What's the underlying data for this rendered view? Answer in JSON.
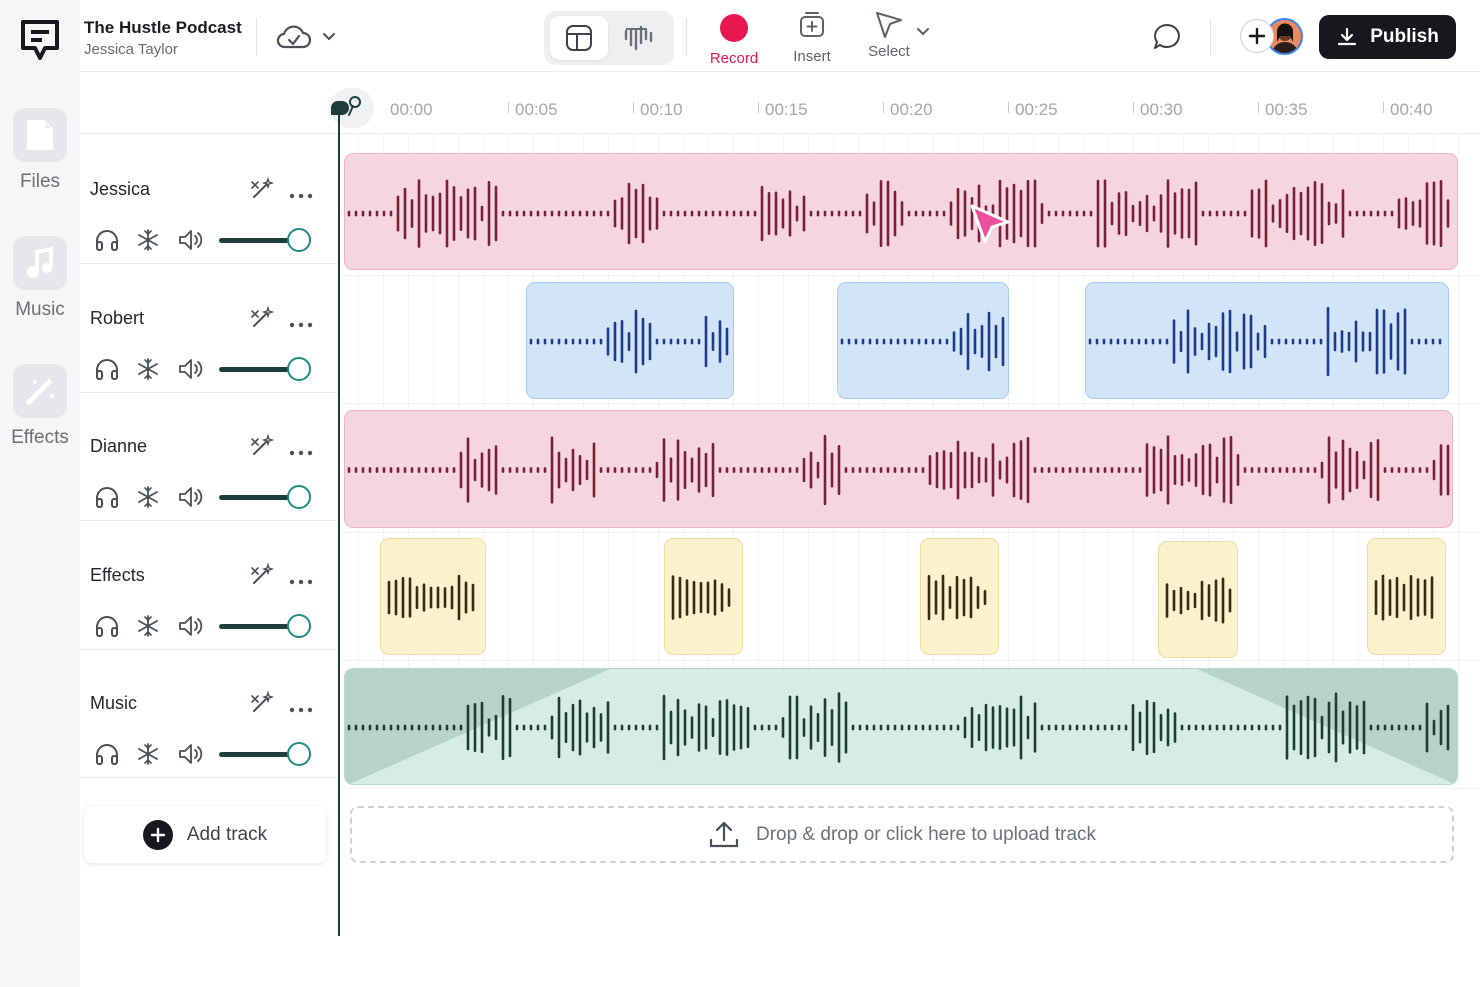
{
  "project": {
    "title": "The Hustle Podcast",
    "author": "Jessica Taylor"
  },
  "sidebar": {
    "items": [
      {
        "label": "Files",
        "icon": "file-icon"
      },
      {
        "label": "Music",
        "icon": "music-note-icon"
      },
      {
        "label": "Effects",
        "icon": "magic-wand-icon"
      }
    ]
  },
  "toolbar": {
    "record_label": "Record",
    "insert_label": "Insert",
    "select_label": "Select",
    "publish_label": "Publish"
  },
  "ruler": {
    "ticks": [
      "00:00",
      "00:05",
      "00:10",
      "00:15",
      "00:20",
      "00:25",
      "00:30",
      "00:35",
      "00:40"
    ]
  },
  "tracks": [
    {
      "name": "Jessica",
      "volume": 1.0,
      "color": "#f5d6de"
    },
    {
      "name": "Robert",
      "volume": 1.0,
      "color": "#d2e5f8"
    },
    {
      "name": "Dianne",
      "volume": 1.0,
      "color": "#f5d6de"
    },
    {
      "name": "Effects",
      "volume": 1.0,
      "color": "#fbf1cc"
    },
    {
      "name": "Music",
      "volume": 1.0,
      "color": "#d6ede6"
    }
  ],
  "footer": {
    "add_track_label": "Add track",
    "upload_label": "Drop & drop or click here to upload track"
  },
  "colors": {
    "accent_record": "#e8174f",
    "wave_pink": "#7a1f3a",
    "wave_blue": "#1e3a8a",
    "wave_yellow": "#3a2a10",
    "wave_green": "#1f3b33",
    "playhead": "#1f3b3a"
  }
}
